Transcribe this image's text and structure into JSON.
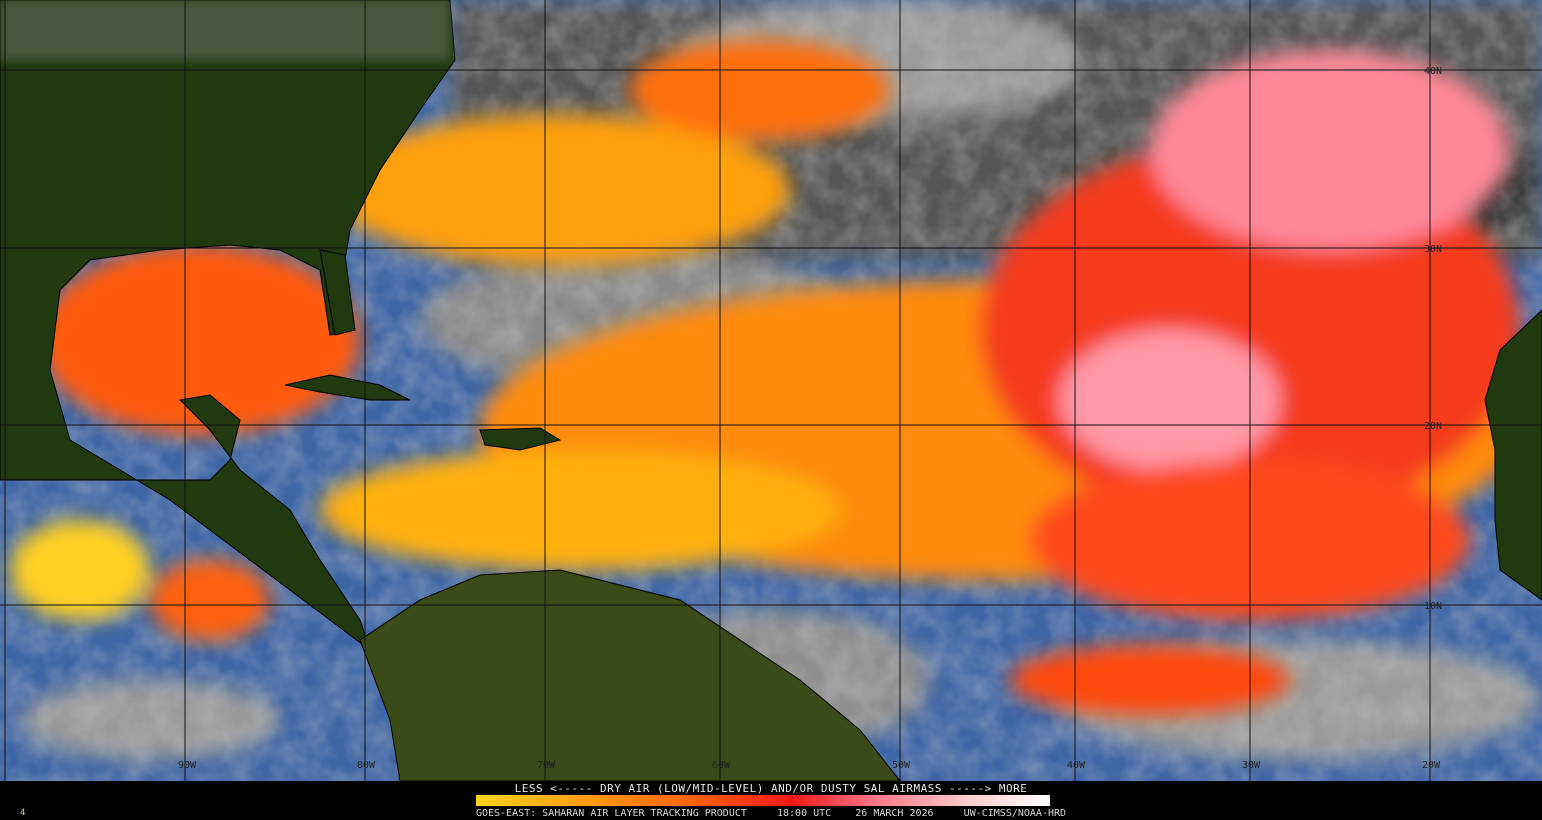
{
  "map": {
    "latitude_labels": [
      "40N",
      "30N",
      "20N",
      "10N"
    ],
    "longitude_labels": [
      "90W",
      "80W",
      "70W",
      "60W",
      "50W",
      "40W",
      "30W",
      "20W"
    ]
  },
  "legend": {
    "title": "LESS <----- DRY AIR (LOW/MID-LEVEL) AND/OR DUSTY SAL AIRMASS -----> MORE",
    "scale_colors": [
      "#ffd21a",
      "#ff9a10",
      "#ff5a0a",
      "#f01818",
      "#ff7a8a",
      "#ffc8cc",
      "#ffffff"
    ]
  },
  "footer": {
    "satellite": "GOES-EAST: SAHARAN AIR LAYER TRACKING PRODUCT",
    "time": "18:00 UTC",
    "date": "26 MARCH 2026",
    "credit": "UW-CIMSS/NOAA-HRD",
    "frame_number": "4"
  },
  "colors": {
    "ocean": "#3f67a8",
    "land": "#1f3a10",
    "cloud": "#9a9a9a",
    "dry_air": "#ff5a0a",
    "very_dry": "#ff9aa8"
  }
}
